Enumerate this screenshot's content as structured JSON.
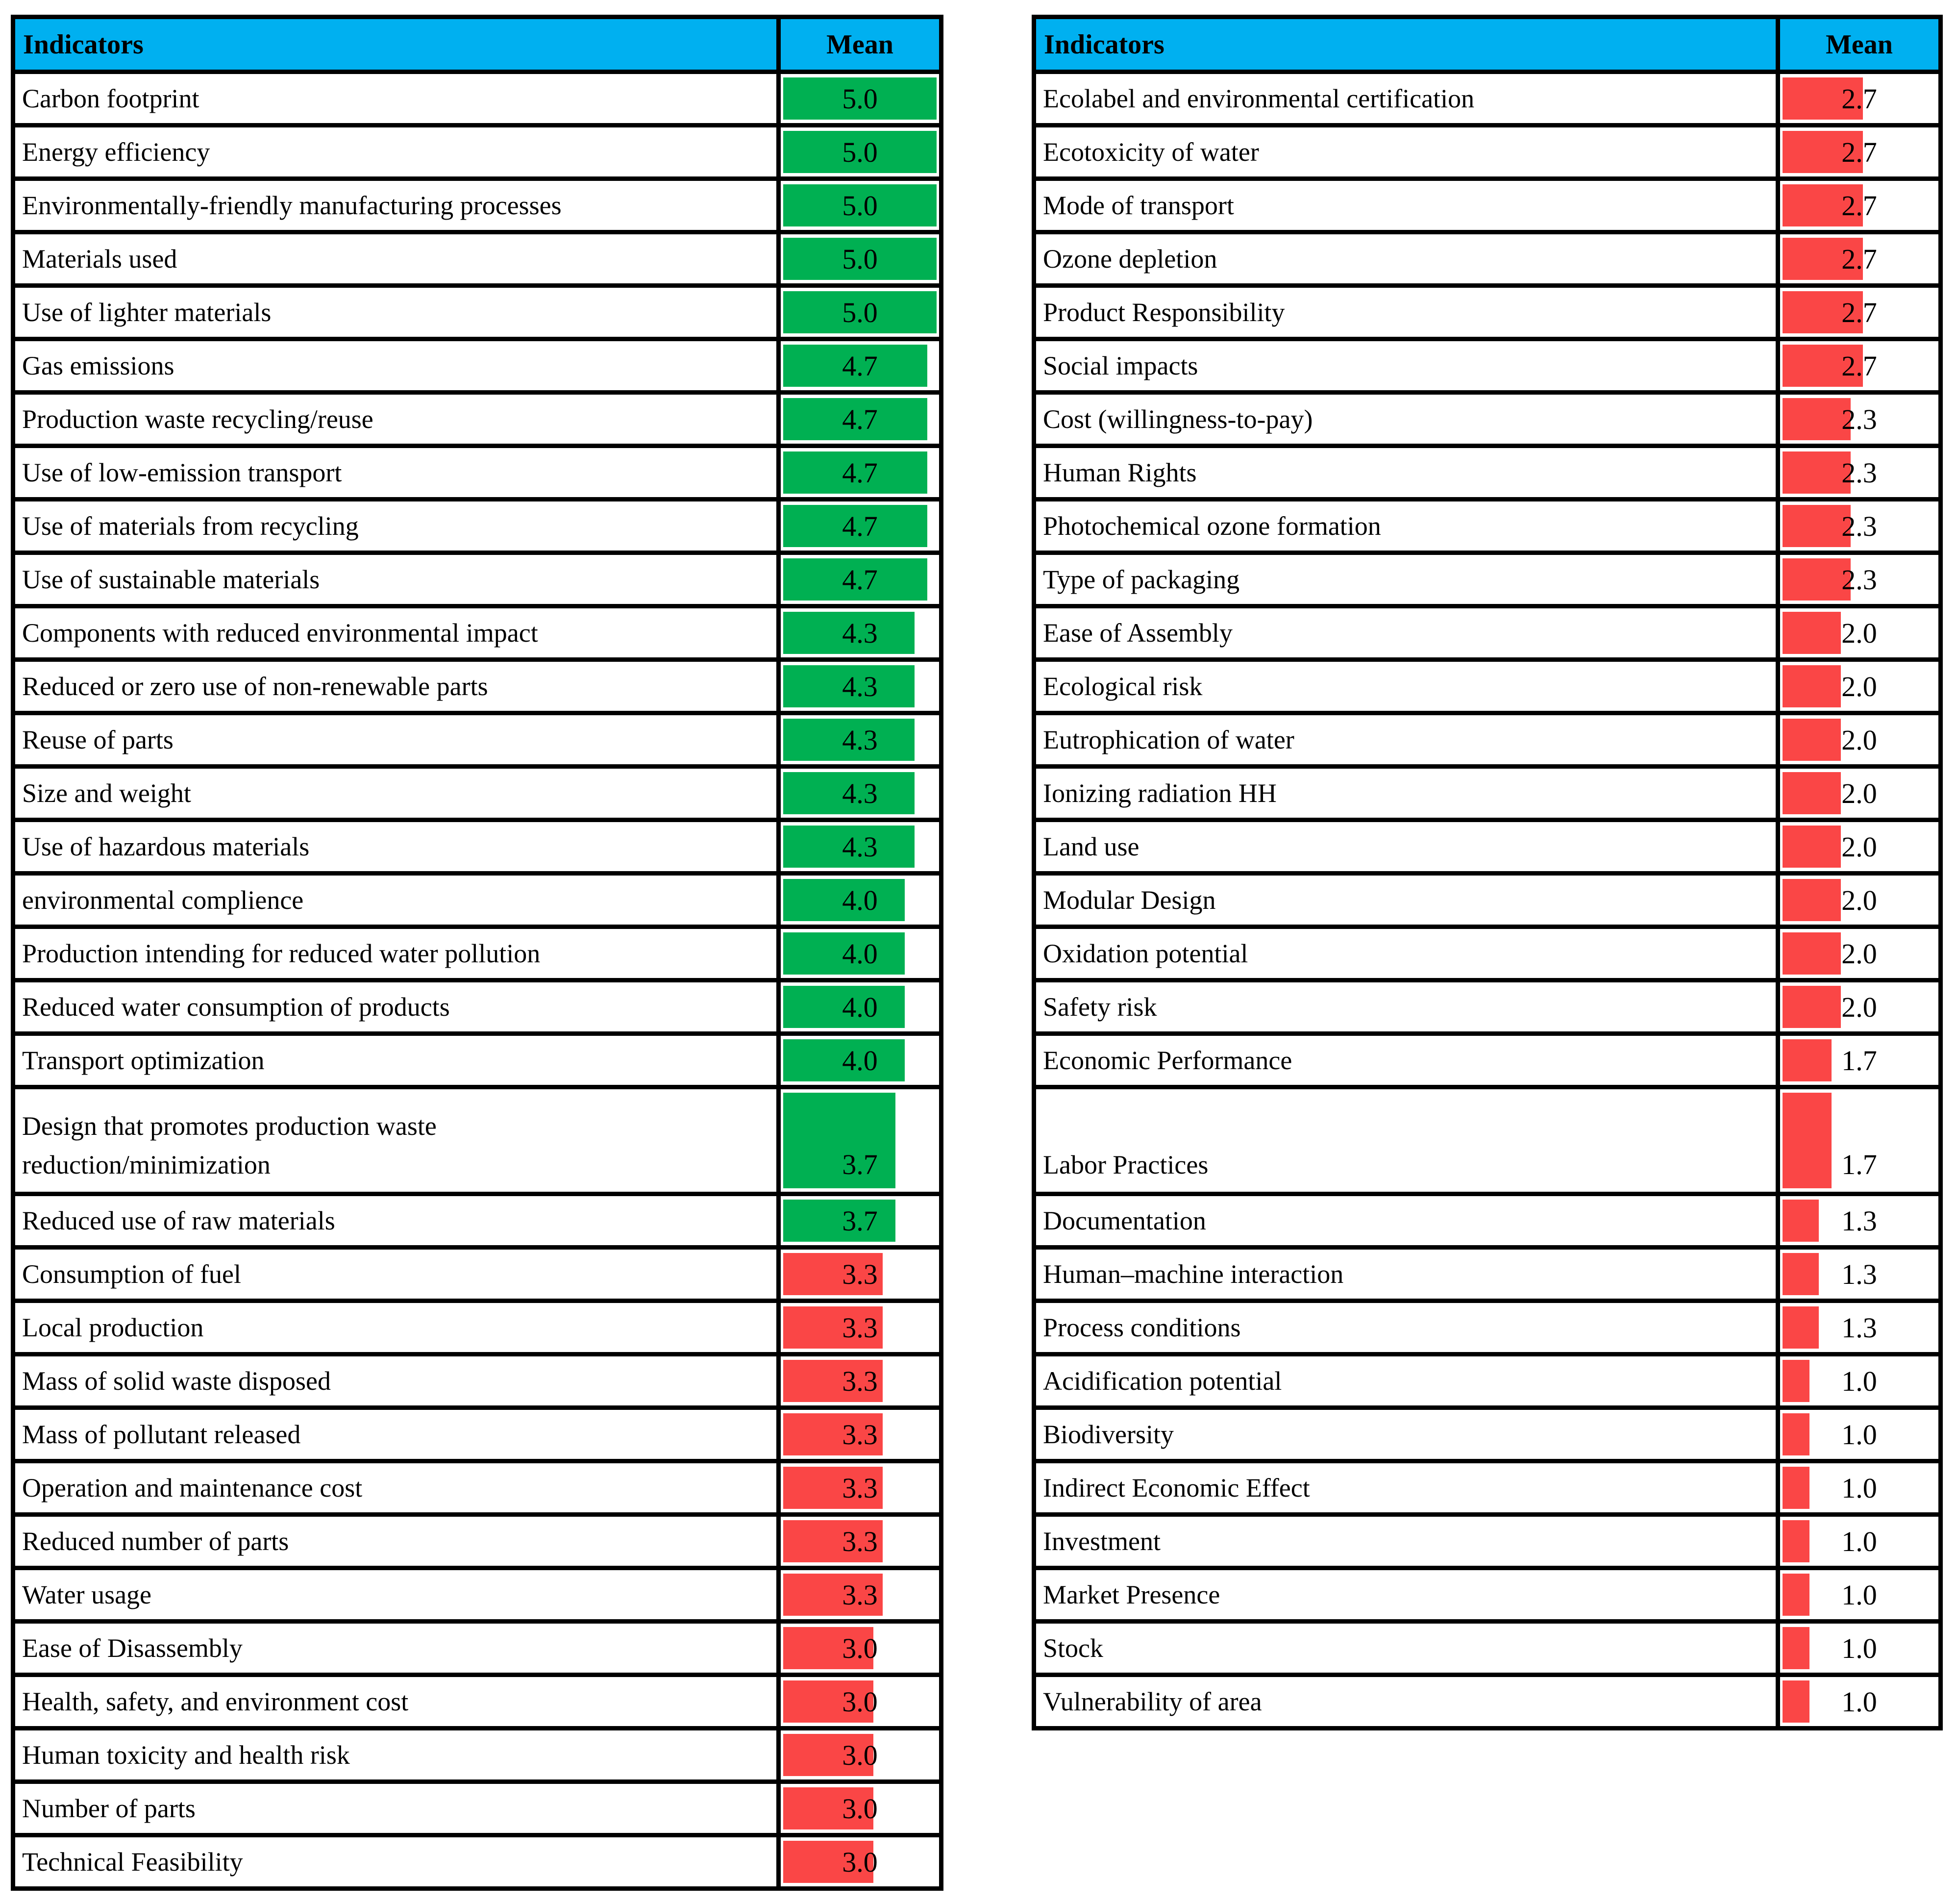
{
  "colors": {
    "header_bg": "#00B0F0",
    "green": "#00B052",
    "red": "#FA4646",
    "border": "#000000",
    "text": "#000000"
  },
  "scale_max": 5,
  "tables": [
    {
      "header": {
        "indicators": "Indicators",
        "mean": "Mean"
      },
      "rows": [
        {
          "label": "Carbon footprint",
          "value": "5.0",
          "bar": "green"
        },
        {
          "label": "Energy efficiency",
          "value": "5.0",
          "bar": "green"
        },
        {
          "label": "Environmentally-friendly manufacturing processes",
          "value": "5.0",
          "bar": "green"
        },
        {
          "label": "Materials used",
          "value": "5.0",
          "bar": "green"
        },
        {
          "label": "Use of lighter materials",
          "value": "5.0",
          "bar": "green"
        },
        {
          "label": "Gas emissions",
          "value": "4.7",
          "bar": "green"
        },
        {
          "label": "Production waste recycling/reuse",
          "value": "4.7",
          "bar": "green"
        },
        {
          "label": "Use of low-emission transport",
          "value": "4.7",
          "bar": "green"
        },
        {
          "label": "Use of materials from recycling",
          "value": "4.7",
          "bar": "green"
        },
        {
          "label": "Use of sustainable materials",
          "value": "4.7",
          "bar": "green"
        },
        {
          "label": "Components with reduced environmental impact",
          "value": "4.3",
          "bar": "green"
        },
        {
          "label": "Reduced or zero use of non-renewable parts",
          "value": "4.3",
          "bar": "green"
        },
        {
          "label": "Reuse of parts",
          "value": "4.3",
          "bar": "green"
        },
        {
          "label": "Size and weight",
          "value": "4.3",
          "bar": "green"
        },
        {
          "label": "Use of hazardous materials",
          "value": "4.3",
          "bar": "green"
        },
        {
          "label": "environmental complience",
          "value": "4.0",
          "bar": "green"
        },
        {
          "label": "Production intending for reduced water pollution",
          "value": "4.0",
          "bar": "green"
        },
        {
          "label": "Reduced water consumption of products",
          "value": "4.0",
          "bar": "green"
        },
        {
          "label": "Transport optimization",
          "value": "4.0",
          "bar": "green"
        },
        {
          "label": "Design that promotes production waste\nreduction/minimization",
          "value": "3.7",
          "bar": "green",
          "tall": true
        },
        {
          "label": "Reduced use of raw materials",
          "value": "3.7",
          "bar": "green"
        },
        {
          "label": "Consumption of fuel",
          "value": "3.3",
          "bar": "red"
        },
        {
          "label": "Local production",
          "value": "3.3",
          "bar": "red"
        },
        {
          "label": "Mass of solid waste disposed",
          "value": "3.3",
          "bar": "red"
        },
        {
          "label": "Mass of pollutant released",
          "value": "3.3",
          "bar": "red"
        },
        {
          "label": "Operation and maintenance cost",
          "value": "3.3",
          "bar": "red"
        },
        {
          "label": "Reduced number of parts",
          "value": "3.3",
          "bar": "red"
        },
        {
          "label": "Water usage",
          "value": "3.3",
          "bar": "red"
        },
        {
          "label": "Ease of Disassembly",
          "value": "3.0",
          "bar": "red"
        },
        {
          "label": "Health, safety, and environment cost",
          "value": "3.0",
          "bar": "red"
        },
        {
          "label": "Human toxicity and health risk",
          "value": "3.0",
          "bar": "red"
        },
        {
          "label": "Number of parts",
          "value": "3.0",
          "bar": "red"
        },
        {
          "label": "Technical Feasibility",
          "value": "3.0",
          "bar": "red"
        }
      ]
    },
    {
      "header": {
        "indicators": "Indicators",
        "mean": "Mean"
      },
      "rows": [
        {
          "label": "Ecolabel and environmental certification",
          "value": "2.7",
          "bar": "red"
        },
        {
          "label": "Ecotoxicity of water",
          "value": "2.7",
          "bar": "red"
        },
        {
          "label": "Mode of transport",
          "value": "2.7",
          "bar": "red"
        },
        {
          "label": "Ozone depletion",
          "value": "2.7",
          "bar": "red"
        },
        {
          "label": "Product Responsibility",
          "value": "2.7",
          "bar": "red"
        },
        {
          "label": "Social impacts",
          "value": "2.7",
          "bar": "red"
        },
        {
          "label": "Cost (willingness-to-pay)",
          "value": "2.3",
          "bar": "red"
        },
        {
          "label": "Human Rights",
          "value": "2.3",
          "bar": "red"
        },
        {
          "label": "Photochemical ozone formation",
          "value": "2.3",
          "bar": "red"
        },
        {
          "label": "Type of packaging",
          "value": "2.3",
          "bar": "red"
        },
        {
          "label": "Ease of Assembly",
          "value": "2.0",
          "bar": "red"
        },
        {
          "label": "Ecological risk",
          "value": "2.0",
          "bar": "red"
        },
        {
          "label": "Eutrophication of water",
          "value": "2.0",
          "bar": "red"
        },
        {
          "label": "Ionizing radiation HH",
          "value": "2.0",
          "bar": "red"
        },
        {
          "label": "Land use",
          "value": "2.0",
          "bar": "red"
        },
        {
          "label": "Modular Design",
          "value": "2.0",
          "bar": "red"
        },
        {
          "label": "Oxidation potential",
          "value": "2.0",
          "bar": "red"
        },
        {
          "label": "Safety risk",
          "value": "2.0",
          "bar": "red"
        },
        {
          "label": "Economic Performance",
          "value": "1.7",
          "bar": "red"
        },
        {
          "label": "Labor Practices",
          "value": "1.7",
          "bar": "red",
          "tall": true
        },
        {
          "label": "Documentation",
          "value": "1.3",
          "bar": "red"
        },
        {
          "label": "Human–machine interaction",
          "value": "1.3",
          "bar": "red"
        },
        {
          "label": "Process conditions",
          "value": "1.3",
          "bar": "red"
        },
        {
          "label": "Acidification potential",
          "value": "1.0",
          "bar": "red"
        },
        {
          "label": "Biodiversity",
          "value": "1.0",
          "bar": "red"
        },
        {
          "label": "Indirect Economic Effect",
          "value": "1.0",
          "bar": "red"
        },
        {
          "label": "Investment",
          "value": "1.0",
          "bar": "red"
        },
        {
          "label": "Market Presence",
          "value": "1.0",
          "bar": "red"
        },
        {
          "label": "Stock",
          "value": "1.0",
          "bar": "red"
        },
        {
          "label": "Vulnerability of area",
          "value": "1.0",
          "bar": "red"
        }
      ]
    }
  ],
  "chart_data": [
    {
      "type": "table",
      "title": "Indicators with mean scores (left table, data bars, scale 0–5)",
      "columns": [
        "Indicators",
        "Mean"
      ],
      "categories": [
        "Carbon footprint",
        "Energy efficiency",
        "Environmentally-friendly manufacturing processes",
        "Materials used",
        "Use of lighter materials",
        "Gas emissions",
        "Production waste recycling/reuse",
        "Use of low-emission transport",
        "Use of materials from recycling",
        "Use of sustainable materials",
        "Components with reduced environmental impact",
        "Reduced or zero use of non-renewable parts",
        "Reuse of parts",
        "Size and weight",
        "Use of hazardous materials",
        "environmental complience",
        "Production intending for reduced water pollution",
        "Reduced water consumption of products",
        "Transport optimization",
        "Design that promotes production waste reduction/minimization",
        "Reduced use of raw materials",
        "Consumption of fuel",
        "Local production",
        "Mass of solid waste disposed",
        "Mass of pollutant released",
        "Operation and maintenance cost",
        "Reduced number of parts",
        "Water usage",
        "Ease of Disassembly",
        "Health, safety, and environment cost",
        "Human toxicity and health risk",
        "Number of parts",
        "Technical Feasibility"
      ],
      "values": [
        5.0,
        5.0,
        5.0,
        5.0,
        5.0,
        4.7,
        4.7,
        4.7,
        4.7,
        4.7,
        4.3,
        4.3,
        4.3,
        4.3,
        4.3,
        4.0,
        4.0,
        4.0,
        4.0,
        3.7,
        3.7,
        3.3,
        3.3,
        3.3,
        3.3,
        3.3,
        3.3,
        3.3,
        3.0,
        3.0,
        3.0,
        3.0,
        3.0
      ],
      "bar_color_rule": "green for values >= 3.7, red for values <= 3.3",
      "value_range": [
        0,
        5
      ]
    },
    {
      "type": "table",
      "title": "Indicators with mean scores (right table, data bars, scale 0–5)",
      "columns": [
        "Indicators",
        "Mean"
      ],
      "categories": [
        "Ecolabel and environmental certification",
        "Ecotoxicity of water",
        "Mode of transport",
        "Ozone depletion",
        "Product Responsibility",
        "Social impacts",
        "Cost (willingness-to-pay)",
        "Human Rights",
        "Photochemical ozone formation",
        "Type of packaging",
        "Ease of Assembly",
        "Ecological risk",
        "Eutrophication of water",
        "Ionizing radiation HH",
        "Land use",
        "Modular Design",
        "Oxidation potential",
        "Safety risk",
        "Economic Performance",
        "Labor Practices",
        "Documentation",
        "Human–machine interaction",
        "Process conditions",
        "Acidification potential",
        "Biodiversity",
        "Indirect Economic Effect",
        "Investment",
        "Market Presence",
        "Stock",
        "Vulnerability of area"
      ],
      "values": [
        2.7,
        2.7,
        2.7,
        2.7,
        2.7,
        2.7,
        2.3,
        2.3,
        2.3,
        2.3,
        2.0,
        2.0,
        2.0,
        2.0,
        2.0,
        2.0,
        2.0,
        2.0,
        1.7,
        1.7,
        1.3,
        1.3,
        1.3,
        1.0,
        1.0,
        1.0,
        1.0,
        1.0,
        1.0,
        1.0
      ],
      "bar_color_rule": "red (all values <= 2.7)",
      "value_range": [
        0,
        5
      ]
    }
  ]
}
